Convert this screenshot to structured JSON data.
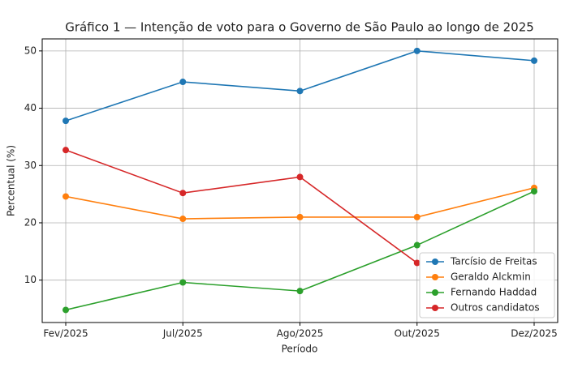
{
  "chart_data": {
    "type": "line",
    "title": "Gráfico 1 — Intenção de voto para o Governo de São Paulo ao longo de 2025",
    "x_label": "Período",
    "y_label": "Percentual (%)",
    "categories": [
      "Fev/2025",
      "Jul/2025",
      "Ago/2025",
      "Out/2025",
      "Dez/2025"
    ],
    "series": [
      {
        "name": "Tarcísio de Freitas",
        "color": "#1f77b4",
        "values": [
          37.8,
          44.6,
          43.0,
          50.0,
          48.3
        ]
      },
      {
        "name": "Geraldo Alckmin",
        "color": "#ff7f0e",
        "values": [
          24.6,
          20.7,
          21.0,
          21.0,
          26.1
        ]
      },
      {
        "name": "Fernando Haddad",
        "color": "#2ca02c",
        "values": [
          4.8,
          9.6,
          8.1,
          16.1,
          25.5
        ]
      },
      {
        "name": "Outros candidatos",
        "color": "#d62728",
        "values": [
          32.7,
          25.2,
          28.0,
          13.0,
          null
        ]
      }
    ],
    "ylim": [
      2.6,
      52.1
    ],
    "yticks": [
      10,
      20,
      30,
      40,
      50
    ],
    "grid": true,
    "legend": "lower right"
  }
}
